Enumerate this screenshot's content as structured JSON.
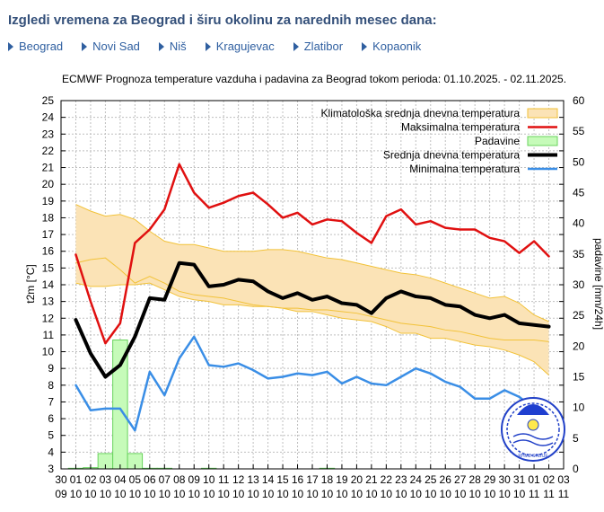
{
  "page": {
    "title": "Izgledi vremena za Beograd i širu okolinu za narednih mesec dana:",
    "cities": [
      "Beograd",
      "Novi Sad",
      "Niš",
      "Kragujevac",
      "Zlatibor",
      "Kopaonik"
    ]
  },
  "colors": {
    "heading": "#34507a",
    "link": "#2f5fa0",
    "climate_fill": "#fbe3b6",
    "climate_edge": "#f2c238",
    "max_line": "#e01010",
    "mean_line": "#000000",
    "min_line": "#3a8ee6",
    "rain_fill": "#c6fbb9",
    "rain_edge": "#69d35e",
    "grid": "#bfbfbf"
  },
  "chart_data": {
    "type": "line",
    "title": "ECMWF Prognoza temperature vazduha i padavina za Beograd tokom perioda: 01.10.2025. - 02.11.2025.",
    "ylabel": "t2m [°C]",
    "y2label": "padavine [mm/24h]",
    "ylim": [
      3,
      25
    ],
    "y2lim": [
      0,
      60
    ],
    "yticks": [
      3,
      4,
      5,
      6,
      7,
      8,
      9,
      10,
      11,
      12,
      13,
      14,
      15,
      16,
      17,
      18,
      19,
      20,
      21,
      22,
      23,
      24,
      25
    ],
    "y2ticks": [
      0,
      5,
      10,
      15,
      20,
      25,
      30,
      35,
      40,
      45,
      50,
      55,
      60
    ],
    "xlim": [
      0,
      34
    ],
    "xtick_days": [
      "30",
      "01",
      "02",
      "03",
      "04",
      "05",
      "06",
      "07",
      "08",
      "09",
      "10",
      "11",
      "12",
      "13",
      "14",
      "15",
      "16",
      "17",
      "18",
      "19",
      "20",
      "21",
      "22",
      "23",
      "24",
      "25",
      "26",
      "27",
      "28",
      "29",
      "30",
      "31",
      "01",
      "02",
      "03"
    ],
    "xtick_months": [
      "09",
      "10",
      "10",
      "10",
      "10",
      "10",
      "10",
      "10",
      "10",
      "10",
      "10",
      "10",
      "10",
      "10",
      "10",
      "10",
      "10",
      "10",
      "10",
      "10",
      "10",
      "10",
      "10",
      "10",
      "10",
      "10",
      "10",
      "10",
      "10",
      "10",
      "10",
      "10",
      "11",
      "11",
      "11"
    ],
    "legend": [
      {
        "label": "Klimatološka srednja dnevna temperatura",
        "kind": "band",
        "color": "#fbe3b6"
      },
      {
        "label": "Maksimalna temperatura",
        "kind": "line",
        "color": "#e01010"
      },
      {
        "label": "Padavine",
        "kind": "bar",
        "color": "#c6fbb9"
      },
      {
        "label": "Srednja dnevna temperatura",
        "kind": "line",
        "color": "#000000"
      },
      {
        "label": "Minimalna temperatura",
        "kind": "line",
        "color": "#3a8ee6"
      }
    ],
    "climate_band": {
      "x": [
        1,
        2,
        3,
        4,
        5,
        6,
        7,
        8,
        9,
        10,
        11,
        12,
        13,
        14,
        15,
        16,
        17,
        18,
        19,
        20,
        21,
        22,
        23,
        24,
        25,
        26,
        27,
        28,
        29,
        30,
        31,
        32,
        33
      ],
      "upper": [
        18.8,
        18.4,
        18.1,
        18.2,
        17.9,
        17.2,
        16.6,
        16.4,
        16.4,
        16.2,
        16.0,
        16.0,
        16.0,
        16.1,
        16.1,
        16.0,
        15.8,
        15.6,
        15.5,
        15.3,
        15.1,
        14.9,
        14.7,
        14.6,
        14.4,
        14.1,
        13.8,
        13.5,
        13.2,
        13.3,
        12.9,
        12.2,
        11.8
      ],
      "mean": [
        15.3,
        15.5,
        15.6,
        14.9,
        14.1,
        14.5,
        14.1,
        13.6,
        13.4,
        13.3,
        13.2,
        13.0,
        12.8,
        12.7,
        12.6,
        12.6,
        12.5,
        12.5,
        12.4,
        12.3,
        12.1,
        11.9,
        11.7,
        11.6,
        11.5,
        11.3,
        11.2,
        11.0,
        10.8,
        10.7,
        10.7,
        10.7,
        10.6
      ],
      "lower": [
        14.1,
        13.9,
        13.9,
        14.0,
        14.0,
        14.1,
        13.7,
        13.3,
        13.1,
        13.0,
        12.8,
        12.8,
        12.7,
        12.7,
        12.6,
        12.4,
        12.4,
        12.2,
        12.0,
        11.9,
        11.8,
        11.5,
        11.1,
        11.1,
        10.8,
        10.8,
        10.6,
        10.4,
        10.3,
        10.1,
        9.8,
        9.4,
        8.6
      ]
    },
    "series": [
      {
        "name": "Maksimalna temperatura",
        "color": "#e01010",
        "width": 2.5,
        "x": [
          1,
          2,
          3,
          4,
          5,
          6,
          7,
          8,
          9,
          10,
          11,
          12,
          13,
          14,
          15,
          16,
          17,
          18,
          19,
          20,
          21,
          22,
          23,
          24,
          25,
          26,
          27,
          28,
          29,
          30,
          31,
          32,
          33
        ],
        "values": [
          15.8,
          13.0,
          10.5,
          11.7,
          16.5,
          17.3,
          18.5,
          21.2,
          19.5,
          18.6,
          18.9,
          19.3,
          19.5,
          18.8,
          18.0,
          18.3,
          17.6,
          17.9,
          17.8,
          17.1,
          16.5,
          18.1,
          18.5,
          17.6,
          17.8,
          17.4,
          17.3,
          17.3,
          16.8,
          16.6,
          15.9,
          16.6,
          15.7
        ]
      },
      {
        "name": "Srednja dnevna temperatura",
        "color": "#000000",
        "width": 4,
        "x": [
          1,
          2,
          3,
          4,
          5,
          6,
          7,
          8,
          9,
          10,
          11,
          12,
          13,
          14,
          15,
          16,
          17,
          18,
          19,
          20,
          21,
          22,
          23,
          24,
          25,
          26,
          27,
          28,
          29,
          30,
          31,
          32,
          33
        ],
        "values": [
          11.9,
          9.9,
          8.5,
          9.2,
          10.9,
          13.2,
          13.1,
          15.3,
          15.2,
          13.9,
          14.0,
          14.3,
          14.2,
          13.6,
          13.2,
          13.5,
          13.1,
          13.3,
          12.9,
          12.8,
          12.3,
          13.2,
          13.6,
          13.3,
          13.2,
          12.8,
          12.7,
          12.2,
          12.0,
          12.2,
          11.7,
          11.6,
          11.5
        ]
      },
      {
        "name": "Minimalna temperatura",
        "color": "#3a8ee6",
        "width": 2.5,
        "x": [
          1,
          2,
          3,
          4,
          5,
          6,
          7,
          8,
          9,
          10,
          11,
          12,
          13,
          14,
          15,
          16,
          17,
          18,
          19,
          20,
          21,
          22,
          23,
          24,
          25,
          26,
          27,
          28,
          29,
          30,
          31,
          32,
          33
        ],
        "values": [
          8.0,
          6.5,
          6.6,
          6.6,
          5.3,
          8.8,
          7.4,
          9.6,
          10.9,
          9.2,
          9.1,
          9.3,
          8.9,
          8.4,
          8.5,
          8.7,
          8.6,
          8.8,
          8.1,
          8.5,
          8.1,
          8.0,
          8.5,
          9.0,
          8.7,
          8.2,
          7.9,
          7.2,
          7.2,
          7.7,
          7.3,
          6.6,
          6.8
        ]
      }
    ],
    "precipitation": {
      "x": [
        1,
        2,
        3,
        4,
        5,
        6,
        7,
        8,
        9,
        10,
        11,
        12,
        13,
        14,
        15,
        16,
        17,
        18,
        19,
        20,
        21,
        22,
        23,
        24,
        25,
        26,
        27,
        28,
        29,
        30,
        31,
        32,
        33
      ],
      "values": [
        0.1,
        0.2,
        2.5,
        21.0,
        2.5,
        0.1,
        0.1,
        0.0,
        0.0,
        0.1,
        0.0,
        0.0,
        0.0,
        0.0,
        0.0,
        0.0,
        0.0,
        0.1,
        0.0,
        0.0,
        0.0,
        0.0,
        0.0,
        0.0,
        0.0,
        0.0,
        0.0,
        0.0,
        0.0,
        0.0,
        0.0,
        0.0,
        0.0
      ]
    },
    "logo_caption": "RHMZ SRBIJE"
  }
}
